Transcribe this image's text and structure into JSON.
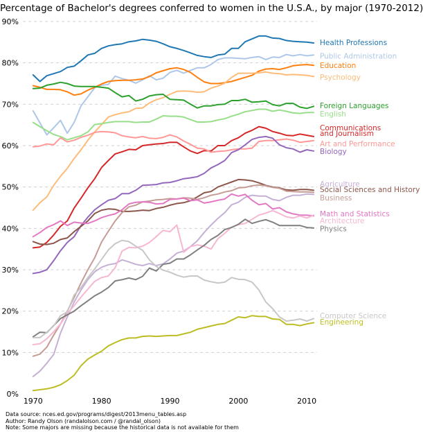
{
  "chart_data": {
    "type": "line",
    "title": "Percentage of Bachelor's degrees conferred to women in the U.S.A., by major (1970-2012)",
    "xlabel": "",
    "ylabel": "",
    "xlim": [
      1968.5,
      2011.5
    ],
    "ylim": [
      0,
      90
    ],
    "x_ticks": [
      1970,
      1980,
      1990,
      2000,
      2010
    ],
    "y_ticks": [
      0,
      10,
      20,
      30,
      40,
      50,
      60,
      70,
      80,
      90
    ],
    "y_tick_format": "%",
    "grid": "horizontal-dashed",
    "legend": "labels at right end of lines",
    "x": [
      1970,
      1971,
      1972,
      1973,
      1974,
      1975,
      1976,
      1977,
      1978,
      1979,
      1980,
      1981,
      1982,
      1983,
      1984,
      1985,
      1986,
      1987,
      1988,
      1989,
      1990,
      1991,
      1992,
      1993,
      1994,
      1995,
      1996,
      1997,
      1998,
      1999,
      2000,
      2001,
      2002,
      2003,
      2004,
      2005,
      2006,
      2007,
      2008,
      2009,
      2010,
      2011
    ],
    "series": [
      {
        "name": "Health Professions",
        "color": "#1f77b4",
        "values": [
          77.1,
          75.5,
          76.9,
          77.4,
          77.9,
          78.9,
          79.2,
          80.5,
          81.9,
          82.3,
          83.5,
          84.1,
          84.4,
          84.6,
          85.1,
          85.3,
          85.7,
          85.5,
          85.2,
          84.6,
          83.9,
          83.5,
          83.0,
          82.4,
          81.8,
          81.5,
          81.3,
          81.9,
          82.1,
          83.5,
          83.5,
          85.1,
          85.8,
          86.5,
          86.5,
          86.0,
          85.9,
          85.4,
          85.2,
          85.1,
          85.0,
          84.8
        ]
      },
      {
        "name": "Public Administration",
        "color": "#aec7e8",
        "values": [
          68.4,
          65.5,
          62.6,
          64.3,
          66.1,
          63.0,
          65.6,
          69.6,
          71.8,
          74.0,
          74.6,
          74.8,
          76.8,
          76.2,
          75.8,
          75.1,
          75.9,
          76.9,
          75.9,
          76.3,
          77.7,
          78.2,
          77.5,
          78.2,
          78.8,
          78.8,
          79.6,
          80.8,
          81.2,
          81.2,
          81.1,
          81.0,
          81.3,
          81.5,
          80.8,
          81.4,
          81.3,
          82.0,
          81.7,
          82.0,
          81.7,
          81.9
        ]
      },
      {
        "name": "Education",
        "color": "#ff7f0e",
        "values": [
          74.5,
          74.1,
          73.6,
          73.6,
          73.5,
          73.0,
          72.2,
          72.5,
          73.4,
          74.1,
          74.9,
          75.5,
          75.7,
          75.8,
          75.8,
          75.9,
          76.1,
          76.7,
          77.6,
          78.1,
          78.6,
          78.8,
          78.4,
          77.7,
          76.5,
          75.4,
          75.0,
          75.0,
          75.2,
          75.5,
          76.0,
          76.5,
          77.0,
          78.0,
          78.5,
          78.6,
          78.4,
          78.8,
          79.3,
          79.5,
          79.6,
          79.4
        ]
      },
      {
        "name": "Psychology",
        "color": "#ffbb78",
        "values": [
          44.4,
          46.2,
          47.6,
          50.4,
          52.6,
          54.5,
          56.9,
          59.0,
          61.3,
          63.3,
          65.1,
          66.9,
          67.5,
          67.9,
          68.2,
          69.0,
          69.1,
          70.3,
          71.1,
          71.6,
          72.4,
          73.1,
          73.2,
          73.1,
          72.9,
          73.0,
          73.9,
          74.4,
          75.1,
          76.5,
          77.5,
          77.5,
          77.5,
          77.6,
          77.8,
          77.5,
          77.4,
          77.1,
          77.2,
          77.1,
          77.0,
          76.7
        ]
      },
      {
        "name": "Foreign Languages",
        "color": "#2ca02c",
        "values": [
          73.8,
          73.9,
          74.6,
          74.9,
          75.3,
          75.0,
          74.4,
          74.3,
          74.3,
          74.3,
          74.1,
          73.9,
          72.8,
          71.8,
          72.1,
          70.8,
          71.2,
          72.0,
          72.3,
          72.4,
          71.2,
          71.1,
          71.0,
          70.0,
          69.1,
          69.6,
          69.6,
          69.9,
          70.0,
          70.9,
          70.9,
          71.2,
          70.5,
          70.6,
          70.8,
          69.9,
          69.6,
          70.2,
          70.2,
          69.3,
          69.0,
          69.5
        ]
      },
      {
        "name": "English",
        "color": "#98df8a",
        "values": [
          65.6,
          64.6,
          63.6,
          62.7,
          62.2,
          61.4,
          61.9,
          62.4,
          63.3,
          65.1,
          65.3,
          65.6,
          65.8,
          65.8,
          65.8,
          65.6,
          65.7,
          65.7,
          66.4,
          67.2,
          67.1,
          67.1,
          66.9,
          66.3,
          65.7,
          65.7,
          65.8,
          66.2,
          66.5,
          67.1,
          67.6,
          68.2,
          68.5,
          68.8,
          68.8,
          68.3,
          68.6,
          68.3,
          67.9,
          67.8,
          68.0,
          68.0
        ]
      },
      {
        "name": "Communications and Journalism",
        "color": "#d62728",
        "values": [
          35.3,
          35.5,
          36.6,
          38.4,
          40.5,
          41.8,
          44.9,
          47.3,
          49.8,
          52.0,
          54.7,
          56.4,
          58.0,
          58.5,
          59.1,
          59.0,
          60.0,
          60.2,
          60.4,
          60.5,
          60.8,
          60.8,
          59.7,
          58.7,
          58.1,
          58.8,
          58.7,
          60.0,
          60.0,
          61.2,
          61.9,
          63.0,
          63.7,
          64.6,
          64.2,
          63.4,
          63.0,
          62.5,
          62.4,
          62.8,
          62.5,
          62.2
        ]
      },
      {
        "name": "Art and Performance",
        "color": "#ff9896",
        "values": [
          59.7,
          59.9,
          60.4,
          60.2,
          61.9,
          60.9,
          61.3,
          62.0,
          62.5,
          63.2,
          63.4,
          63.3,
          63.1,
          62.4,
          62.1,
          61.9,
          62.2,
          61.8,
          61.7,
          62.0,
          62.6,
          62.1,
          61.1,
          60.3,
          59.4,
          59.2,
          58.4,
          58.6,
          58.7,
          59.0,
          59.2,
          59.2,
          59.4,
          61.0,
          61.2,
          61.2,
          61.4,
          61.6,
          61.3,
          60.8,
          61.0,
          61.2
        ]
      },
      {
        "name": "Biology",
        "color": "#9467bd",
        "values": [
          29.1,
          29.4,
          30.0,
          32.2,
          34.6,
          36.6,
          38.0,
          40.7,
          42.7,
          44.5,
          45.7,
          46.8,
          47.2,
          48.4,
          48.4,
          49.2,
          50.4,
          50.5,
          50.6,
          51.0,
          51.1,
          51.5,
          52.0,
          52.2,
          52.5,
          53.3,
          54.6,
          55.4,
          56.4,
          58.3,
          59.0,
          60.2,
          61.5,
          62.0,
          62.2,
          61.8,
          60.2,
          59.5,
          59.2,
          58.4,
          59.0,
          58.7
        ]
      },
      {
        "name": "Agriculture",
        "color": "#c5b0d5",
        "values": [
          4.2,
          5.5,
          7.4,
          9.5,
          14.7,
          18.6,
          22.2,
          25.1,
          27.6,
          29.5,
          30.6,
          31.2,
          31.5,
          32.4,
          31.9,
          31.3,
          31.0,
          31.5,
          31.0,
          31.4,
          32.6,
          34.0,
          34.5,
          35.6,
          37.0,
          39.0,
          40.8,
          42.4,
          43.8,
          45.7,
          46.3,
          47.5,
          48.0,
          47.8,
          47.8,
          47.0,
          46.7,
          47.5,
          48.0,
          48.0,
          48.3,
          48.2
        ]
      },
      {
        "name": "Social Sciences and History",
        "color": "#8c564b",
        "values": [
          36.8,
          36.2,
          36.1,
          36.4,
          37.3,
          37.7,
          39.2,
          40.5,
          41.8,
          43.6,
          44.4,
          44.7,
          44.6,
          44.1,
          44.1,
          44.2,
          44.4,
          44.3,
          44.8,
          45.1,
          45.6,
          46.0,
          46.2,
          46.7,
          47.6,
          48.6,
          48.9,
          50.0,
          50.6,
          51.2,
          51.8,
          51.7,
          51.5,
          51.0,
          50.4,
          50.0,
          49.8,
          49.3,
          49.2,
          49.4,
          49.4,
          49.2
        ]
      },
      {
        "name": "Business",
        "color": "#c49c94",
        "values": [
          9.1,
          9.6,
          11.3,
          14.2,
          16.9,
          20.0,
          23.3,
          26.8,
          30.0,
          32.9,
          36.7,
          39.3,
          41.8,
          43.8,
          45.2,
          45.6,
          46.4,
          46.6,
          46.9,
          47.0,
          47.2,
          47.1,
          47.4,
          47.3,
          47.0,
          47.4,
          48.0,
          48.3,
          48.8,
          49.1,
          49.8,
          49.9,
          50.3,
          50.5,
          50.3,
          49.9,
          49.7,
          49.0,
          48.9,
          48.8,
          48.8,
          48.7
        ]
      },
      {
        "name": "Math and Statistics",
        "color": "#e377c2",
        "values": [
          38.0,
          39.0,
          40.2,
          40.9,
          41.8,
          40.7,
          41.5,
          41.3,
          41.2,
          41.8,
          42.6,
          43.1,
          43.5,
          44.5,
          45.9,
          46.3,
          46.4,
          46.3,
          45.9,
          46.0,
          47.0,
          47.1,
          47.3,
          46.7,
          46.9,
          46.1,
          46.4,
          46.8,
          47.1,
          48.3,
          47.8,
          48.2,
          46.8,
          45.7,
          46.0,
          44.7,
          45.0,
          44.0,
          43.5,
          43.2,
          43.2,
          43.0
        ]
      },
      {
        "name": "Architecture",
        "color": "#f7b6d2",
        "values": [
          11.9,
          12.1,
          13.3,
          15.0,
          16.9,
          19.4,
          21.3,
          23.4,
          25.3,
          27.2,
          28.1,
          28.5,
          30.5,
          34.5,
          35.4,
          35.3,
          35.7,
          36.6,
          38.0,
          39.5,
          39.2,
          40.8,
          34.2,
          35.6,
          36.0,
          35.7,
          35.0,
          37.5,
          38.8,
          40.3,
          40.9,
          41.2,
          42.2,
          43.2,
          43.7,
          44.3,
          43.6,
          42.8,
          42.5,
          43.0,
          42.5,
          43.2
        ]
      },
      {
        "name": "Physics",
        "color": "#7f7f7f",
        "values": [
          13.8,
          14.9,
          14.8,
          16.5,
          18.2,
          19.1,
          20.0,
          21.3,
          22.5,
          23.7,
          24.6,
          25.7,
          27.3,
          27.6,
          28.0,
          27.6,
          28.4,
          30.4,
          29.7,
          31.3,
          31.6,
          32.6,
          32.6,
          33.6,
          34.8,
          35.9,
          37.3,
          38.3,
          39.7,
          40.2,
          41.0,
          42.2,
          41.2,
          41.7,
          42.1,
          41.5,
          40.7,
          40.7,
          40.7,
          40.7,
          40.2,
          40.1
        ]
      },
      {
        "name": "Computer Science",
        "color": "#c7c7c7",
        "values": [
          13.6,
          13.6,
          14.9,
          16.4,
          18.9,
          19.8,
          23.9,
          25.7,
          28.1,
          30.2,
          32.5,
          34.8,
          36.3,
          37.1,
          36.8,
          35.7,
          34.7,
          32.4,
          30.8,
          29.9,
          29.4,
          28.7,
          28.2,
          28.5,
          28.5,
          27.5,
          27.1,
          26.8,
          27.0,
          28.1,
          27.7,
          27.6,
          27.0,
          25.1,
          22.2,
          20.6,
          18.6,
          17.6,
          17.8,
          18.1,
          17.6,
          18.2
        ]
      },
      {
        "name": "Engineering",
        "color": "#bcbd22",
        "values": [
          0.8,
          1.0,
          1.2,
          1.6,
          2.2,
          3.2,
          4.5,
          6.8,
          8.4,
          9.4,
          10.3,
          11.6,
          12.4,
          13.1,
          13.5,
          13.5,
          13.9,
          14.0,
          13.9,
          14.0,
          14.1,
          14.1,
          14.5,
          14.9,
          15.6,
          16.0,
          16.4,
          16.8,
          17.0,
          17.8,
          18.6,
          18.4,
          18.9,
          18.7,
          18.7,
          18.1,
          18.0,
          16.8,
          16.8,
          16.5,
          16.9,
          17.2
        ]
      }
    ],
    "label_lines": [
      [
        "Health Professions"
      ],
      [
        "Public Administration"
      ],
      [
        "Education"
      ],
      [
        "Psychology"
      ],
      [
        "Foreign Languages"
      ],
      [
        "English"
      ],
      [
        "Communications",
        "and Journalism"
      ],
      [
        "Art and Performance"
      ],
      [
        "Biology"
      ],
      [
        "Agriculture"
      ],
      [
        "Social Sciences and History"
      ],
      [
        "Business"
      ],
      [
        "Math and Statistics"
      ],
      [
        "Architecture"
      ],
      [
        "Physics"
      ],
      [
        "Computer Science"
      ],
      [
        "Engineering"
      ]
    ],
    "annotations": [
      "Data source: nces.ed.gov/programs/digest/2013menu_tables.asp",
      "Author: Randy Olson (randalolson.com / @randal_olson)",
      "Note: Some majors are missing because the historical data is not available for them"
    ]
  }
}
